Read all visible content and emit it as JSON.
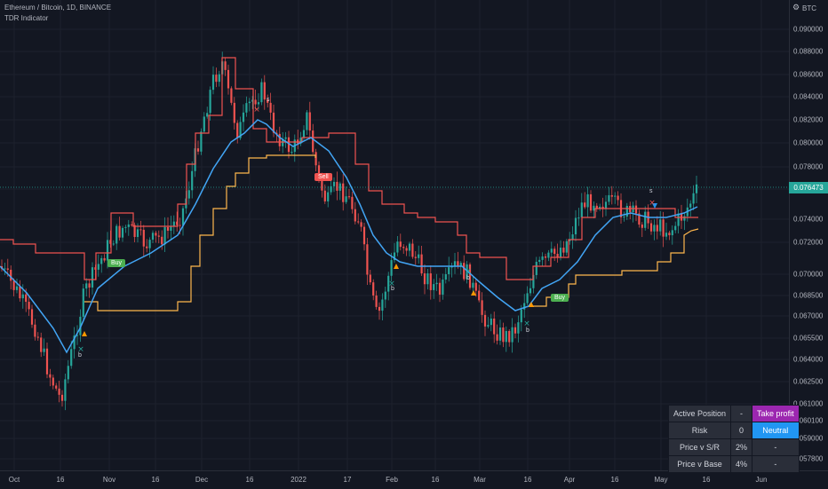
{
  "header": {
    "symbol": "Ethereum / Bitcoin, 1D, BINANCE",
    "indicator": "TDR Indicator",
    "currency": "BTC",
    "settings_icon": "gear-icon"
  },
  "price_axis": {
    "ticks": [
      "0.090000",
      "0.088000",
      "0.086000",
      "0.084000",
      "0.082000",
      "0.080000",
      "0.078000",
      "0.076000",
      "0.074000",
      "0.072000",
      "0.070000",
      "0.068500",
      "0.067000",
      "0.065500",
      "0.064000",
      "0.062500",
      "0.061000",
      "0.060100",
      "0.059000",
      "0.057800"
    ],
    "last_price": "0.076473"
  },
  "time_axis": {
    "ticks": [
      "Oct",
      "16",
      "Nov",
      "16",
      "Dec",
      "16",
      "2022",
      "17",
      "Feb",
      "16",
      "Mar",
      "16",
      "Apr",
      "16",
      "May",
      "16",
      "Jun"
    ]
  },
  "signals": {
    "buy_label": "Buy",
    "sell_label": "Sell",
    "b_label": "b",
    "s_label": "s"
  },
  "table": {
    "rows": [
      [
        "Active Position",
        "-",
        "Take profit"
      ],
      [
        "Risk",
        "0",
        "Neutral"
      ],
      [
        "Price v S/R",
        "2%",
        "-"
      ],
      [
        "Price v Base",
        "4%",
        "-"
      ]
    ]
  },
  "colors": {
    "background": "#131722",
    "up": "#26a69a",
    "down": "#ef5350",
    "base_line": "#42a5f5",
    "support_line": "#ffb74d",
    "resistance_line": "#ef5350",
    "purple": "#9c27b0",
    "blue": "#2196f3"
  }
}
